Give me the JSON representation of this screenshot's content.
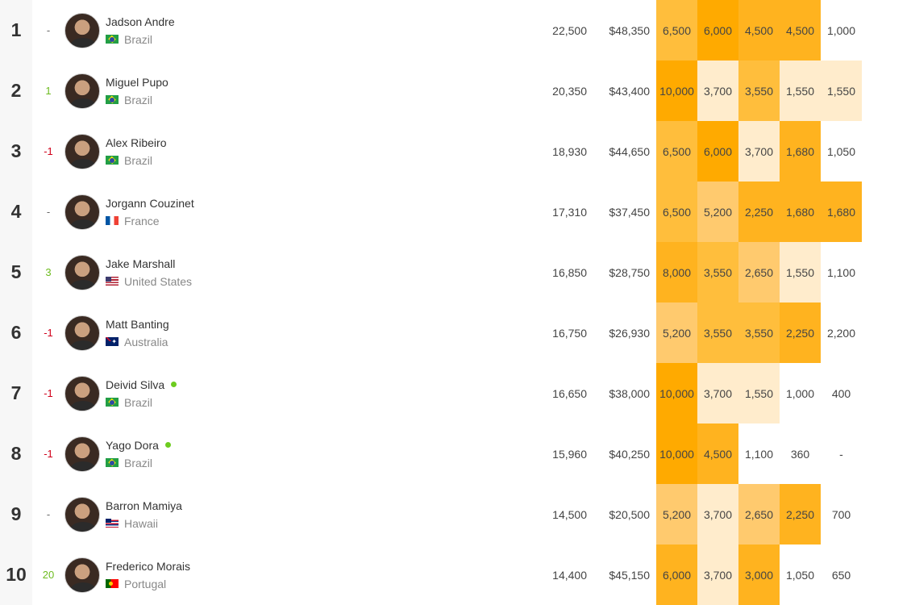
{
  "colors": {
    "heat_max": "#ffaa00",
    "heat_high": "#ffb31f",
    "heat_mid": "#ffbe3c",
    "heat_low": "#ffca6e",
    "heat_min": "#ffeccc",
    "change_up": "#6dbb1f",
    "change_down": "#d0021b",
    "live_dot": "#6dcc1f"
  },
  "rows": [
    {
      "rank": "1",
      "change": "-",
      "change_dir": "none",
      "name": "Jadson Andre",
      "live": false,
      "country": "Brazil",
      "flag": "flag-br",
      "points": "22,500",
      "prize": "$48,350",
      "results": [
        "6,500",
        "6,000",
        "4,500",
        "4,500",
        "1,000"
      ],
      "heat": [
        "c3",
        "c5",
        "c4",
        "c4",
        "c0"
      ]
    },
    {
      "rank": "2",
      "change": "1",
      "change_dir": "up",
      "name": "Miguel Pupo",
      "live": false,
      "country": "Brazil",
      "flag": "flag-br",
      "points": "20,350",
      "prize": "$43,400",
      "results": [
        "10,000",
        "3,700",
        "3,550",
        "1,550",
        "1,550"
      ],
      "heat": [
        "c5",
        "c1",
        "c3",
        "c1",
        "c1"
      ]
    },
    {
      "rank": "3",
      "change": "-1",
      "change_dir": "down",
      "name": "Alex Ribeiro",
      "live": false,
      "country": "Brazil",
      "flag": "flag-br",
      "points": "18,930",
      "prize": "$44,650",
      "results": [
        "6,500",
        "6,000",
        "3,700",
        "1,680",
        "1,050"
      ],
      "heat": [
        "c3",
        "c5",
        "c1",
        "c4",
        "c0"
      ]
    },
    {
      "rank": "4",
      "change": "-",
      "change_dir": "none",
      "name": "Jorgann Couzinet",
      "live": false,
      "country": "France",
      "flag": "flag-fr",
      "points": "17,310",
      "prize": "$37,450",
      "results": [
        "6,500",
        "5,200",
        "2,250",
        "1,680",
        "1,680"
      ],
      "heat": [
        "c3",
        "c2",
        "c4",
        "c4",
        "c4"
      ]
    },
    {
      "rank": "5",
      "change": "3",
      "change_dir": "up",
      "name": "Jake Marshall",
      "live": false,
      "country": "United States",
      "flag": "flag-us",
      "points": "16,850",
      "prize": "$28,750",
      "results": [
        "8,000",
        "3,550",
        "2,650",
        "1,550",
        "1,100"
      ],
      "heat": [
        "c4",
        "c3",
        "c2",
        "c1",
        "c0"
      ]
    },
    {
      "rank": "6",
      "change": "-1",
      "change_dir": "down",
      "name": "Matt Banting",
      "live": false,
      "country": "Australia",
      "flag": "flag-au",
      "points": "16,750",
      "prize": "$26,930",
      "results": [
        "5,200",
        "3,550",
        "3,550",
        "2,250",
        "2,200"
      ],
      "heat": [
        "c2",
        "c3",
        "c3",
        "c4",
        "c0"
      ]
    },
    {
      "rank": "7",
      "change": "-1",
      "change_dir": "down",
      "name": "Deivid Silva",
      "live": true,
      "country": "Brazil",
      "flag": "flag-br",
      "points": "16,650",
      "prize": "$38,000",
      "results": [
        "10,000",
        "3,700",
        "1,550",
        "1,000",
        "400"
      ],
      "heat": [
        "c5",
        "c1",
        "c1",
        "c0",
        "c0"
      ]
    },
    {
      "rank": "8",
      "change": "-1",
      "change_dir": "down",
      "name": "Yago Dora",
      "live": true,
      "country": "Brazil",
      "flag": "flag-br",
      "points": "15,960",
      "prize": "$40,250",
      "results": [
        "10,000",
        "4,500",
        "1,100",
        "360",
        "-"
      ],
      "heat": [
        "c5",
        "c4",
        "c0",
        "c0",
        "c0"
      ]
    },
    {
      "rank": "9",
      "change": "-",
      "change_dir": "none",
      "name": "Barron Mamiya",
      "live": false,
      "country": "Hawaii",
      "flag": "flag-hi",
      "points": "14,500",
      "prize": "$20,500",
      "results": [
        "5,200",
        "3,700",
        "2,650",
        "2,250",
        "700"
      ],
      "heat": [
        "c2",
        "c1",
        "c2",
        "c4",
        "c0"
      ]
    },
    {
      "rank": "10",
      "change": "20",
      "change_dir": "up",
      "name": "Frederico Morais",
      "live": false,
      "country": "Portugal",
      "flag": "flag-pt",
      "points": "14,400",
      "prize": "$45,150",
      "results": [
        "6,000",
        "3,700",
        "3,000",
        "1,050",
        "650"
      ],
      "heat": [
        "c4",
        "c1",
        "c4",
        "c0",
        "c0"
      ]
    }
  ]
}
